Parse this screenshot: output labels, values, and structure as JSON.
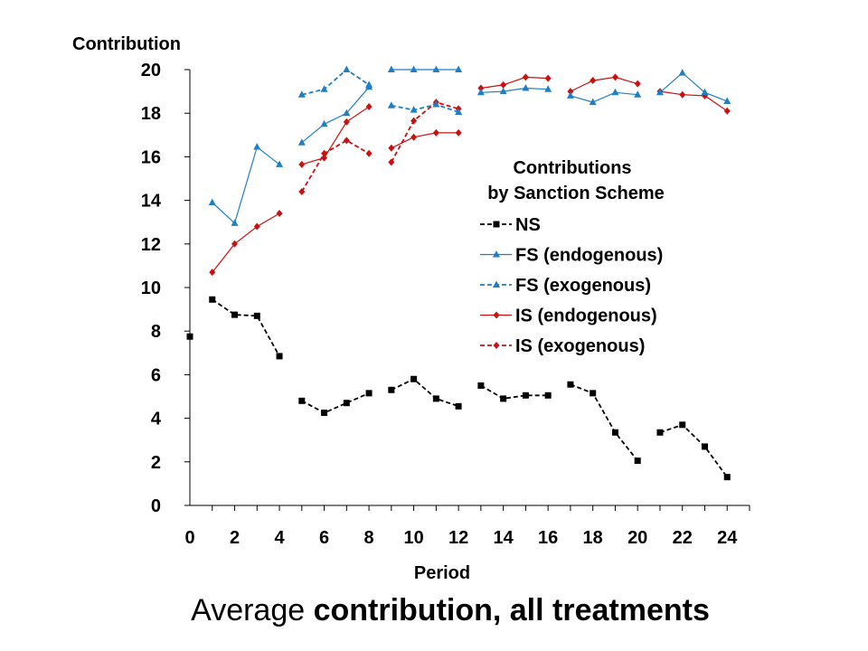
{
  "chart_data": {
    "type": "line",
    "ylabel": "Contribution",
    "xlabel": "Period",
    "xlim": [
      0,
      25
    ],
    "ylim": [
      0,
      20
    ],
    "xticks": [
      0,
      2,
      4,
      6,
      8,
      10,
      12,
      14,
      16,
      18,
      20,
      22,
      24
    ],
    "yticks": [
      0,
      2,
      4,
      6,
      8,
      10,
      12,
      14,
      16,
      18,
      20
    ],
    "legend": {
      "title_line1": "Contributions",
      "title_line2": "by Sanction Scheme",
      "placement": "right-center"
    },
    "series": [
      {
        "name": "NS",
        "color": "#000000",
        "style": "dashed",
        "marker": "square",
        "segments": [
          [
            [
              0,
              7.75
            ]
          ],
          [
            [
              1,
              9.45
            ],
            [
              2,
              8.75
            ],
            [
              3,
              8.7
            ],
            [
              4,
              6.85
            ]
          ],
          [
            [
              5,
              4.8
            ],
            [
              6,
              4.25
            ],
            [
              7,
              4.7
            ],
            [
              8,
              5.15
            ]
          ],
          [
            [
              9,
              5.3
            ],
            [
              10,
              5.8
            ],
            [
              11,
              4.9
            ],
            [
              12,
              4.55
            ]
          ],
          [
            [
              13,
              5.5
            ],
            [
              14,
              4.9
            ],
            [
              15,
              5.05
            ],
            [
              16,
              5.05
            ]
          ],
          [
            [
              17,
              5.55
            ],
            [
              18,
              5.15
            ],
            [
              19,
              3.35
            ],
            [
              20,
              2.05
            ]
          ],
          [
            [
              21,
              3.35
            ],
            [
              22,
              3.7
            ],
            [
              23,
              2.7
            ],
            [
              24,
              1.3
            ]
          ]
        ]
      },
      {
        "name": "FS (endogenous)",
        "color": "#1f7fc4",
        "style": "solid",
        "marker": "triangle",
        "segments": [
          [
            [
              1,
              13.9
            ],
            [
              2,
              12.95
            ],
            [
              3,
              16.45
            ],
            [
              4,
              15.65
            ]
          ],
          [
            [
              5,
              16.65
            ],
            [
              6,
              17.5
            ],
            [
              7,
              18.0
            ],
            [
              8,
              19.2
            ]
          ],
          [
            [
              9,
              20.0
            ],
            [
              10,
              20.0
            ],
            [
              11,
              20.0
            ],
            [
              12,
              20.0
            ]
          ],
          [
            [
              13,
              18.95
            ],
            [
              14,
              19.0
            ],
            [
              15,
              19.15
            ],
            [
              16,
              19.1
            ]
          ],
          [
            [
              17,
              18.8
            ],
            [
              18,
              18.5
            ],
            [
              19,
              18.95
            ],
            [
              20,
              18.85
            ]
          ],
          [
            [
              21,
              18.95
            ],
            [
              22,
              19.85
            ],
            [
              23,
              18.95
            ],
            [
              24,
              18.55
            ]
          ]
        ]
      },
      {
        "name": "FS (exogenous)",
        "color": "#1f7fc4",
        "style": "dashed",
        "marker": "triangle",
        "segments": [
          [
            [
              5,
              18.85
            ],
            [
              6,
              19.1
            ],
            [
              7,
              20.0
            ],
            [
              8,
              19.3
            ]
          ],
          [
            [
              9,
              18.35
            ],
            [
              10,
              18.15
            ],
            [
              11,
              18.4
            ],
            [
              12,
              18.05
            ]
          ]
        ]
      },
      {
        "name": "IS (endogenous)",
        "color": "#cc1010",
        "style": "solid",
        "marker": "diamond",
        "segments": [
          [
            [
              1,
              10.7
            ],
            [
              2,
              12.0
            ],
            [
              3,
              12.8
            ],
            [
              4,
              13.4
            ]
          ],
          [
            [
              5,
              15.65
            ],
            [
              6,
              15.95
            ],
            [
              7,
              17.6
            ],
            [
              8,
              18.3
            ]
          ],
          [
            [
              9,
              16.4
            ],
            [
              10,
              16.9
            ],
            [
              11,
              17.1
            ],
            [
              12,
              17.1
            ]
          ],
          [
            [
              13,
              19.15
            ],
            [
              14,
              19.3
            ],
            [
              15,
              19.65
            ],
            [
              16,
              19.6
            ]
          ],
          [
            [
              17,
              19.0
            ],
            [
              18,
              19.5
            ],
            [
              19,
              19.65
            ],
            [
              20,
              19.35
            ]
          ],
          [
            [
              21,
              19.0
            ],
            [
              22,
              18.85
            ],
            [
              23,
              18.8
            ],
            [
              24,
              18.1
            ]
          ]
        ]
      },
      {
        "name": "IS (exogenous)",
        "color": "#cc1010",
        "style": "dashed",
        "marker": "diamond",
        "segments": [
          [
            [
              5,
              14.4
            ],
            [
              6,
              16.15
            ],
            [
              7,
              16.75
            ],
            [
              8,
              16.15
            ]
          ],
          [
            [
              9,
              15.75
            ],
            [
              10,
              17.65
            ],
            [
              11,
              18.5
            ],
            [
              12,
              18.2
            ]
          ]
        ]
      }
    ]
  },
  "caption": {
    "normal": "Average ",
    "bold": "contribution, all treatments"
  }
}
